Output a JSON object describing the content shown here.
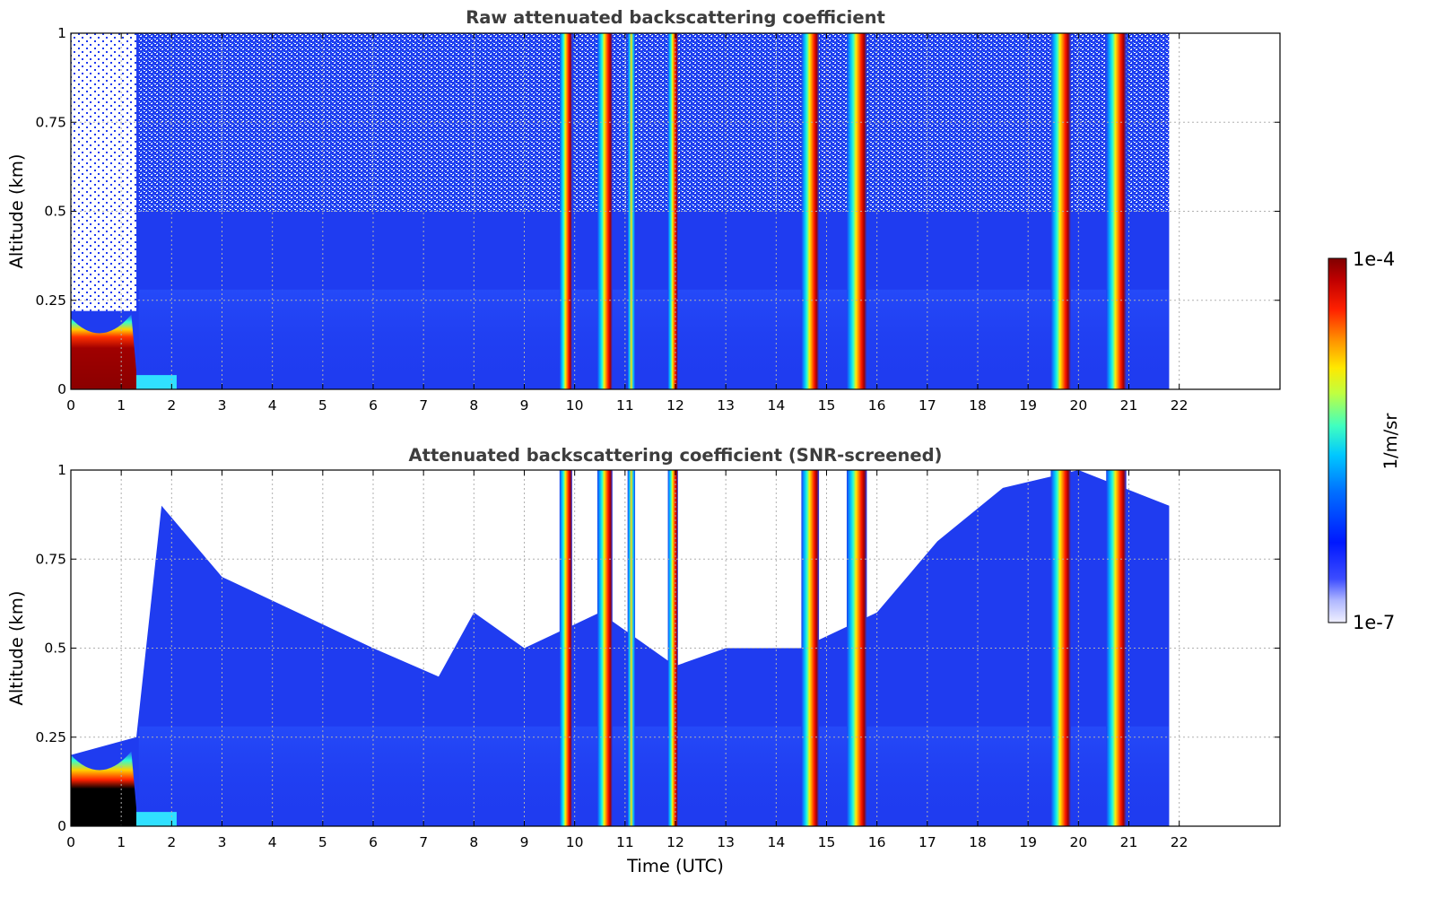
{
  "chart_data": [
    {
      "type": "heatmap",
      "title": "Raw attenuated backscattering coefficient",
      "xlabel": "",
      "ylabel": "Altitude (km)",
      "xlim": [
        0,
        24
      ],
      "ylim": [
        0,
        1
      ],
      "data_time_range": [
        0,
        21.8
      ],
      "xticks": [
        "0",
        "1",
        "2",
        "3",
        "4",
        "5",
        "6",
        "7",
        "8",
        "9",
        "10",
        "11",
        "12",
        "13",
        "14",
        "15",
        "16",
        "17",
        "18",
        "19",
        "20",
        "21",
        "22"
      ],
      "yticks": [
        "0",
        "0.25",
        "0.5",
        "0.75",
        "1"
      ],
      "grid": true,
      "background_level": "1e-6",
      "features": [
        {
          "name": "surface aerosol layer",
          "time": [
            0,
            1.3
          ],
          "altitude_top": 0.2,
          "level": "1e-4"
        },
        {
          "name": "cloud",
          "time": [
            9.7,
            9.95
          ],
          "altitude": [
            0,
            1
          ],
          "level": "1e-4"
        },
        {
          "name": "cloud",
          "time": [
            10.45,
            10.75
          ],
          "altitude": [
            0,
            1
          ],
          "level": "1e-4"
        },
        {
          "name": "cloud",
          "time": [
            11.05,
            11.2
          ],
          "altitude": [
            0,
            1
          ],
          "level": "5e-5"
        },
        {
          "name": "cloud",
          "time": [
            11.85,
            12.05
          ],
          "altitude": [
            0,
            1
          ],
          "level": "1e-4"
        },
        {
          "name": "cloud",
          "time": [
            14.5,
            14.85
          ],
          "altitude": [
            0,
            1
          ],
          "level": "1e-4"
        },
        {
          "name": "cloud",
          "time": [
            15.4,
            15.8
          ],
          "altitude": [
            0,
            1
          ],
          "level": "1e-4"
        },
        {
          "name": "cloud",
          "time": [
            19.45,
            19.85
          ],
          "altitude": [
            0,
            1
          ],
          "level": "1e-4"
        },
        {
          "name": "cloud",
          "time": [
            20.55,
            20.95
          ],
          "altitude": [
            0,
            1
          ],
          "level": "1e-4"
        }
      ]
    },
    {
      "type": "heatmap",
      "title": "Attenuated backscattering coefficient (SNR-screened)",
      "xlabel": "Time (UTC)",
      "ylabel": "Altitude (km)",
      "xlim": [
        0,
        24
      ],
      "ylim": [
        0,
        1
      ],
      "data_time_range": [
        0,
        21.8
      ],
      "xticks": [
        "0",
        "1",
        "2",
        "3",
        "4",
        "5",
        "6",
        "7",
        "8",
        "9",
        "10",
        "11",
        "12",
        "13",
        "14",
        "15",
        "16",
        "17",
        "18",
        "19",
        "20",
        "21",
        "22"
      ],
      "yticks": [
        "0",
        "0.25",
        "0.5",
        "0.75",
        "1"
      ],
      "grid": true,
      "background_level": "1e-6",
      "screened_top_profile": [
        [
          0,
          0.2
        ],
        [
          1.3,
          0.25
        ],
        [
          1.8,
          0.9
        ],
        [
          3,
          0.7
        ],
        [
          4.5,
          0.6
        ],
        [
          6,
          0.5
        ],
        [
          7.3,
          0.42
        ],
        [
          8,
          0.6
        ],
        [
          9,
          0.5
        ],
        [
          10.5,
          0.6
        ],
        [
          12,
          0.45
        ],
        [
          13,
          0.5
        ],
        [
          14.5,
          0.5
        ],
        [
          16,
          0.6
        ],
        [
          17.2,
          0.8
        ],
        [
          18.5,
          0.95
        ],
        [
          20,
          1
        ],
        [
          21.8,
          0.9
        ]
      ],
      "features": [
        {
          "name": "surface aerosol layer",
          "time": [
            0,
            1.3
          ],
          "altitude_top": 0.2,
          "level": "1e-4"
        },
        {
          "name": "cloud",
          "time": [
            9.7,
            9.95
          ],
          "altitude": [
            0,
            1
          ],
          "level": "1e-4"
        },
        {
          "name": "cloud",
          "time": [
            10.45,
            10.75
          ],
          "altitude": [
            0,
            1
          ],
          "level": "1e-4"
        },
        {
          "name": "cloud",
          "time": [
            11.05,
            11.2
          ],
          "altitude": [
            0,
            1
          ],
          "level": "5e-5"
        },
        {
          "name": "cloud",
          "time": [
            11.85,
            12.05
          ],
          "altitude": [
            0,
            1
          ],
          "level": "1e-4"
        },
        {
          "name": "cloud",
          "time": [
            14.5,
            14.85
          ],
          "altitude": [
            0,
            1
          ],
          "level": "1e-4"
        },
        {
          "name": "cloud",
          "time": [
            15.4,
            15.8
          ],
          "altitude": [
            0,
            1
          ],
          "level": "1e-4"
        },
        {
          "name": "cloud",
          "time": [
            19.45,
            19.85
          ],
          "altitude": [
            0,
            1
          ],
          "level": "1e-4"
        },
        {
          "name": "cloud",
          "time": [
            20.55,
            20.95
          ],
          "altitude": [
            0,
            1
          ],
          "level": "1e-4"
        }
      ]
    }
  ],
  "colorbar": {
    "label": "1/m/sr",
    "min": "1e-7",
    "max": "1e-4",
    "scale": "log",
    "colormap": "jet"
  },
  "colors": {
    "background_blue": "#1f3cf0",
    "overlimit": "#000000",
    "title_color": "#3d3d3d"
  }
}
